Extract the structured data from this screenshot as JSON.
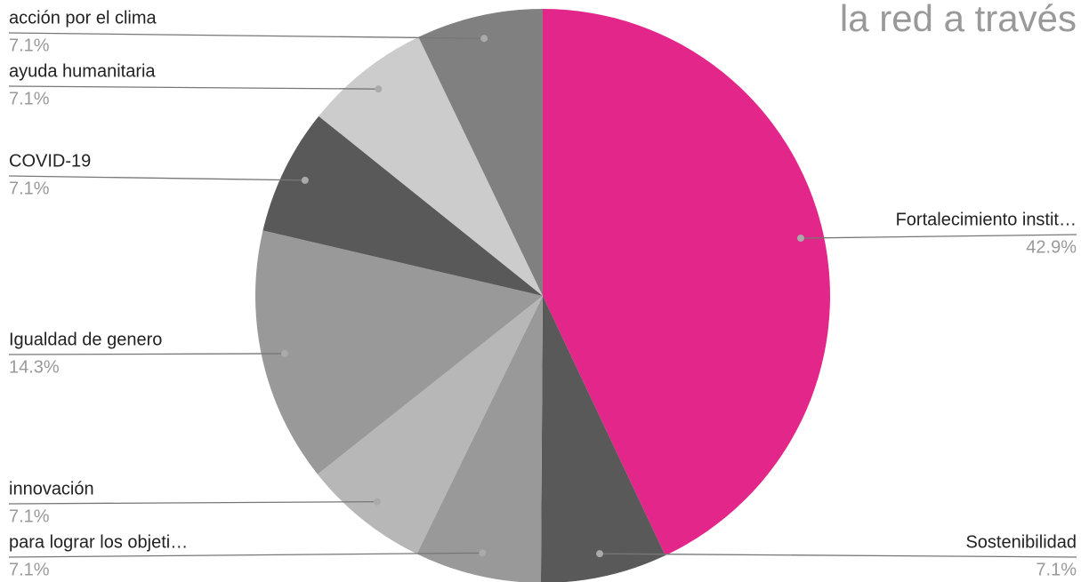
{
  "chart_data": {
    "type": "pie",
    "title": "la red a través",
    "categories": [
      "Fortalecimiento instit…",
      "Sostenibilidad",
      "para lograr los objeti…",
      "innovación",
      "Igualdad de genero",
      "COVID-19",
      "ayuda humanitaria",
      "acción por el clima"
    ],
    "values": [
      42.9,
      7.1,
      7.1,
      7.1,
      14.3,
      7.1,
      7.1,
      7.1
    ],
    "value_labels": [
      "42.9%",
      "7.1%",
      "7.1%",
      "7.1%",
      "14.3%",
      "7.1%",
      "7.1%",
      "7.1%"
    ],
    "colors": [
      "#e3268a",
      "#595959",
      "#999999",
      "#b7b7b7",
      "#999999",
      "#595959",
      "#cccccc",
      "#808080"
    ]
  }
}
